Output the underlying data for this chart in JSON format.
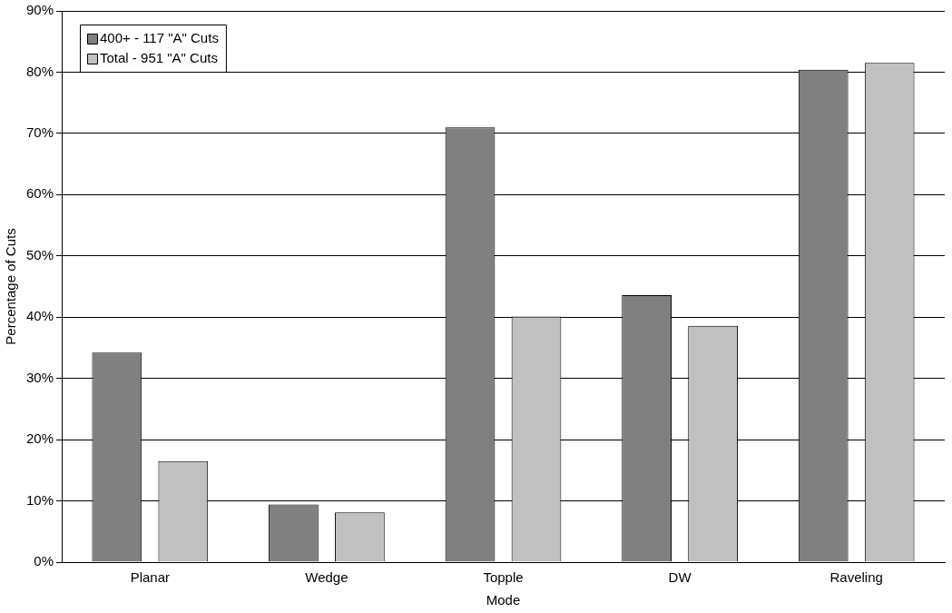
{
  "chart_data": {
    "type": "bar",
    "xlabel": "Mode",
    "ylabel": "Percentage of Cuts",
    "categories": [
      "Planar",
      "Wedge",
      "Topple",
      "DW",
      "Raveling"
    ],
    "series": [
      {
        "name": "400+ - 117 \"A\" Cuts",
        "color": "#808080",
        "values": [
          34.2,
          9.4,
          71,
          43.6,
          80.4
        ]
      },
      {
        "name": "Total - 951 \"A\" Cuts",
        "color": "#c0c0c0",
        "values": [
          16.5,
          8.1,
          40.1,
          38.6,
          81.5
        ]
      }
    ],
    "ylim": [
      0,
      90
    ],
    "yticks": [
      {
        "value": 0,
        "label": "0%"
      },
      {
        "value": 10,
        "label": "10%"
      },
      {
        "value": 20,
        "label": "20%"
      },
      {
        "value": 30,
        "label": "30%"
      },
      {
        "value": 40,
        "label": "40%"
      },
      {
        "value": 50,
        "label": "50%"
      },
      {
        "value": 60,
        "label": "60%"
      },
      {
        "value": 70,
        "label": "70%"
      },
      {
        "value": 80,
        "label": "80%"
      },
      {
        "value": 90,
        "label": "90%"
      }
    ],
    "grid": "y",
    "legend": "top left"
  }
}
